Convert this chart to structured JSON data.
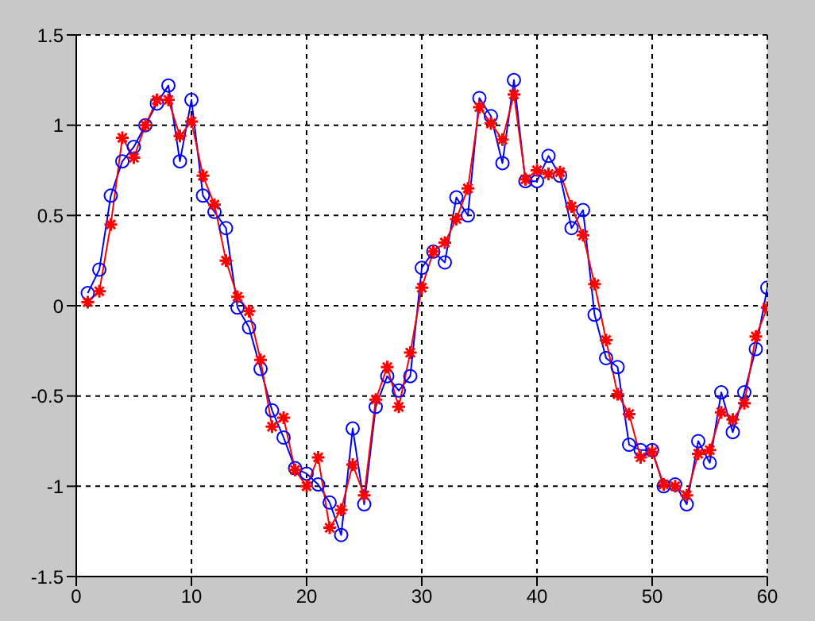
{
  "chart_data": {
    "type": "line",
    "x": [
      1,
      2,
      3,
      4,
      5,
      6,
      7,
      8,
      9,
      10,
      11,
      12,
      13,
      14,
      15,
      16,
      17,
      18,
      19,
      20,
      21,
      22,
      23,
      24,
      25,
      26,
      27,
      28,
      29,
      30,
      31,
      32,
      33,
      34,
      35,
      36,
      37,
      38,
      39,
      40,
      41,
      42,
      43,
      44,
      45,
      46,
      47,
      48,
      49,
      50,
      51,
      52,
      53,
      54,
      55,
      56,
      57,
      58,
      59,
      60
    ],
    "series": [
      {
        "color": "#0000ff",
        "marker": "circle",
        "values": [
          0.07,
          0.2,
          0.61,
          0.8,
          0.88,
          1.0,
          1.12,
          1.22,
          0.8,
          1.14,
          0.61,
          0.52,
          0.43,
          -0.01,
          -0.12,
          -0.35,
          -0.58,
          -0.73,
          -0.9,
          -0.93,
          -0.99,
          -1.09,
          -1.27,
          -0.68,
          -1.1,
          -0.56,
          -0.39,
          -0.47,
          -0.39,
          0.21,
          0.3,
          0.24,
          0.6,
          0.5,
          1.15,
          1.05,
          0.79,
          1.25,
          0.69,
          0.69,
          0.83,
          0.72,
          0.43,
          0.53,
          -0.05,
          -0.29,
          -0.34,
          -0.77,
          -0.8,
          -0.8,
          -1.0,
          -0.99,
          -1.1,
          -0.75,
          -0.87,
          -0.48,
          -0.7,
          -0.48,
          -0.24,
          0.1
        ]
      },
      {
        "color": "#ff0000",
        "marker": "cross",
        "values": [
          0.02,
          0.08,
          0.45,
          0.93,
          0.82,
          1.0,
          1.14,
          1.14,
          0.94,
          1.02,
          0.72,
          0.56,
          0.25,
          0.05,
          -0.03,
          -0.3,
          -0.67,
          -0.62,
          -0.91,
          -1.0,
          -0.84,
          -1.23,
          -1.13,
          -0.88,
          -1.05,
          -0.52,
          -0.34,
          -0.56,
          -0.26,
          0.1,
          0.3,
          0.35,
          0.48,
          0.65,
          1.1,
          1.01,
          0.92,
          1.17,
          0.7,
          0.75,
          0.73,
          0.74,
          0.55,
          0.39,
          0.12,
          -0.19,
          -0.49,
          -0.6,
          -0.84,
          -0.81,
          -0.99,
          -1.0,
          -1.05,
          -0.82,
          -0.8,
          -0.59,
          -0.63,
          -0.54,
          -0.17,
          -0.01
        ]
      }
    ],
    "xlim": [
      0,
      60
    ],
    "xticks": [
      0,
      10,
      20,
      30,
      40,
      50,
      60
    ],
    "ylim": [
      -1.5,
      1.5
    ],
    "yticks": [
      -1.5,
      -1,
      -0.5,
      0,
      0.5,
      1,
      1.5
    ],
    "grid": true,
    "legend": false,
    "line_style": "solid"
  }
}
